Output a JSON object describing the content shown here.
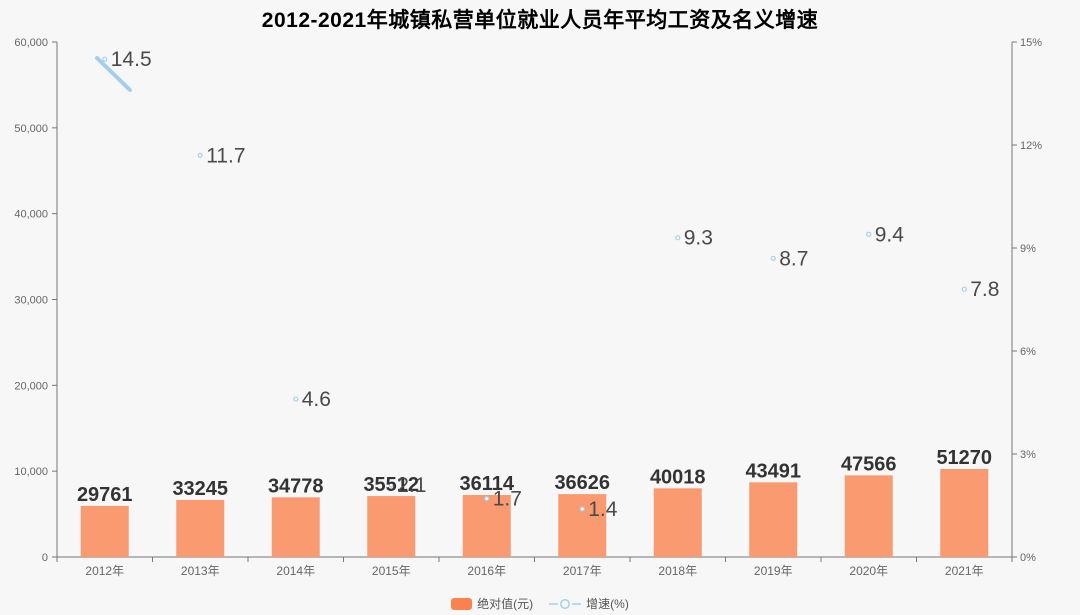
{
  "title": "2012-2021年城镇私营单位就业人员年平均工资及名义增速",
  "chart_data": {
    "type": "bar+line",
    "title": "2012-2021年城镇私营单位就业人员年平均工资及名义增速",
    "categories": [
      "2012年",
      "2013年",
      "2014年",
      "2015年",
      "2016年",
      "2017年",
      "2018年",
      "2019年",
      "2020年",
      "2021年"
    ],
    "series": [
      {
        "name": "绝对值(元)",
        "type": "bar",
        "values": [
          29761,
          33245,
          34778,
          35512,
          36114,
          36626,
          40018,
          43491,
          47566,
          51270
        ]
      },
      {
        "name": "增速(%)",
        "type": "line",
        "values": [
          14.5,
          11.7,
          4.6,
          2.1,
          1.7,
          1.4,
          9.3,
          8.7,
          9.4,
          7.8
        ]
      }
    ],
    "left_axis": {
      "min": 0,
      "max": 60000,
      "tick_step": 10000,
      "tick_labels": [
        "0",
        "10,000",
        "20,000",
        "30,000",
        "40,000",
        "50,000",
        "60,000"
      ]
    },
    "right_axis": {
      "min": 0,
      "max": 15,
      "tick_step": 3,
      "tick_labels": [
        "0%",
        "3%",
        "6%",
        "9%",
        "12%",
        "15%"
      ]
    },
    "bar_hidden_axis_max": 300000,
    "line_render_note": "line series mostly invisible; only a short segment drawn from the 2012 point toward 2013, plus tiny hollow markers",
    "legend_position": "bottom-center",
    "grid": false
  },
  "legend": {
    "bar_label": "绝对值(元)",
    "line_label": "增速(%)"
  },
  "colors": {
    "bar_fill": "#FA9A70",
    "legend_bar_swatch": "#F9834E",
    "line_blue": "#A3CFEF",
    "bar_value_label": "#333333",
    "growth_value_label": "#4A4A4A",
    "axis_line": "#777777",
    "axis_tick_label": "#666666",
    "title_color": "#000000",
    "background": "#F7F7F7"
  }
}
